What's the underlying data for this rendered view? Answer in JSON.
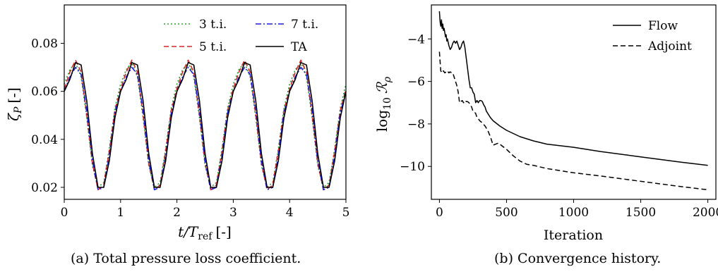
{
  "captions": {
    "a": "(a) Total pressure loss coefficient.",
    "b": "(b) Convergence history."
  },
  "chart_data": [
    {
      "type": "line",
      "xlabel_main": "t/T",
      "xlabel_sub": "ref",
      "xlabel_unit": "[-]",
      "ylabel_main": "ζ",
      "ylabel_sub": "P",
      "ylabel_unit": "[-]",
      "xlim": [
        0,
        5
      ],
      "ylim": [
        0.015,
        0.096
      ],
      "xticks": [
        0,
        1,
        2,
        3,
        4,
        5
      ],
      "xtick_labels": [
        "0",
        "1",
        "2",
        "3",
        "4",
        "5"
      ],
      "yticks": [
        0.02,
        0.04,
        0.06,
        0.08
      ],
      "ytick_labels": [
        "0.02",
        "0.04",
        "0.06",
        "0.08"
      ],
      "grid": false,
      "legend": "top-right",
      "series": [
        {
          "name": "3 t.i.",
          "color": "#2ca02c",
          "dash": "dotted",
          "x": [
            0,
            0.1,
            0.2,
            0.3,
            0.4,
            0.5,
            0.6,
            0.7,
            0.8,
            0.9,
            1.0,
            1.1,
            1.2,
            1.3,
            1.4,
            1.5,
            1.6,
            1.7,
            1.8,
            1.9,
            2.0,
            2.1,
            2.2,
            2.3,
            2.4,
            2.5,
            2.6,
            2.7,
            2.8,
            2.9,
            3.0,
            3.1,
            3.2,
            3.3,
            3.4,
            3.5,
            3.6,
            3.7,
            3.8,
            3.9,
            4.0,
            4.1,
            4.2,
            4.3,
            4.4,
            4.5,
            4.6,
            4.7,
            4.8,
            4.9,
            5.0
          ],
          "y": [
            0.063,
            0.069,
            0.072,
            0.066,
            0.049,
            0.029,
            0.02,
            0.022,
            0.036,
            0.053,
            0.063,
            0.069,
            0.072,
            0.066,
            0.049,
            0.029,
            0.02,
            0.022,
            0.036,
            0.053,
            0.063,
            0.069,
            0.072,
            0.066,
            0.049,
            0.029,
            0.02,
            0.022,
            0.036,
            0.053,
            0.063,
            0.069,
            0.072,
            0.066,
            0.049,
            0.029,
            0.02,
            0.022,
            0.036,
            0.053,
            0.063,
            0.069,
            0.072,
            0.066,
            0.049,
            0.029,
            0.02,
            0.022,
            0.036,
            0.053,
            0.063
          ]
        },
        {
          "name": "5 t.i.",
          "color": "#d62728",
          "dash": "dashed",
          "x": [
            0,
            0.1,
            0.2,
            0.3,
            0.4,
            0.5,
            0.6,
            0.7,
            0.8,
            0.9,
            1.0,
            1.1,
            1.2,
            1.3,
            1.4,
            1.5,
            1.6,
            1.7,
            1.8,
            1.9,
            2.0,
            2.1,
            2.2,
            2.3,
            2.4,
            2.5,
            2.6,
            2.7,
            2.8,
            2.9,
            3.0,
            3.1,
            3.2,
            3.3,
            3.4,
            3.5,
            3.6,
            3.7,
            3.8,
            3.9,
            4.0,
            4.1,
            4.2,
            4.3,
            4.4,
            4.5,
            4.6,
            4.7,
            4.8,
            4.9,
            5.0
          ],
          "y": [
            0.061,
            0.068,
            0.073,
            0.068,
            0.05,
            0.03,
            0.019,
            0.021,
            0.035,
            0.052,
            0.061,
            0.068,
            0.073,
            0.068,
            0.05,
            0.03,
            0.019,
            0.021,
            0.035,
            0.052,
            0.061,
            0.068,
            0.073,
            0.068,
            0.05,
            0.03,
            0.019,
            0.021,
            0.035,
            0.052,
            0.061,
            0.068,
            0.073,
            0.068,
            0.05,
            0.03,
            0.019,
            0.021,
            0.035,
            0.052,
            0.061,
            0.068,
            0.073,
            0.068,
            0.05,
            0.03,
            0.019,
            0.021,
            0.035,
            0.052,
            0.061
          ]
        },
        {
          "name": "7 t.i.",
          "color": "#1f1fdd",
          "dash": "dashdot",
          "x": [
            0,
            0.1,
            0.2,
            0.3,
            0.4,
            0.5,
            0.6,
            0.7,
            0.8,
            0.9,
            1.0,
            1.1,
            1.2,
            1.3,
            1.4,
            1.5,
            1.6,
            1.7,
            1.8,
            1.9,
            2.0,
            2.1,
            2.2,
            2.3,
            2.4,
            2.5,
            2.6,
            2.7,
            2.8,
            2.9,
            3.0,
            3.1,
            3.2,
            3.3,
            3.4,
            3.5,
            3.6,
            3.7,
            3.8,
            3.9,
            4.0,
            4.1,
            4.2,
            4.3,
            4.4,
            4.5,
            4.6,
            4.7,
            4.8,
            4.9,
            5.0
          ],
          "y": [
            0.06,
            0.066,
            0.07,
            0.067,
            0.052,
            0.031,
            0.019,
            0.02,
            0.033,
            0.051,
            0.06,
            0.066,
            0.07,
            0.067,
            0.052,
            0.031,
            0.019,
            0.02,
            0.033,
            0.051,
            0.06,
            0.066,
            0.07,
            0.067,
            0.052,
            0.031,
            0.019,
            0.02,
            0.033,
            0.051,
            0.06,
            0.066,
            0.07,
            0.067,
            0.052,
            0.031,
            0.019,
            0.02,
            0.033,
            0.051,
            0.06,
            0.066,
            0.07,
            0.067,
            0.052,
            0.031,
            0.019,
            0.02,
            0.033,
            0.051,
            0.06
          ]
        },
        {
          "name": "TA",
          "color": "#000000",
          "dash": "solid",
          "x": [
            0,
            0.1,
            0.2,
            0.3,
            0.4,
            0.5,
            0.6,
            0.7,
            0.8,
            0.9,
            1.0,
            1.1,
            1.2,
            1.3,
            1.4,
            1.5,
            1.6,
            1.7,
            1.8,
            1.9,
            2.0,
            2.1,
            2.2,
            2.3,
            2.4,
            2.5,
            2.6,
            2.7,
            2.8,
            2.9,
            3.0,
            3.1,
            3.2,
            3.3,
            3.4,
            3.5,
            3.6,
            3.7,
            3.8,
            3.9,
            4.0,
            4.1,
            4.2,
            4.3,
            4.4,
            4.5,
            4.6,
            4.7,
            4.8,
            4.9,
            5.0
          ],
          "y": [
            0.06,
            0.065,
            0.072,
            0.071,
            0.056,
            0.034,
            0.02,
            0.02,
            0.031,
            0.049,
            0.06,
            0.065,
            0.072,
            0.071,
            0.056,
            0.034,
            0.02,
            0.02,
            0.031,
            0.049,
            0.06,
            0.065,
            0.072,
            0.071,
            0.056,
            0.034,
            0.02,
            0.02,
            0.031,
            0.049,
            0.06,
            0.065,
            0.072,
            0.071,
            0.056,
            0.034,
            0.02,
            0.02,
            0.031,
            0.049,
            0.06,
            0.065,
            0.072,
            0.071,
            0.056,
            0.034,
            0.02,
            0.02,
            0.031,
            0.049,
            0.06
          ]
        }
      ]
    },
    {
      "type": "line",
      "xlabel": "Iteration",
      "ylabel_main": "log",
      "ylabel_sub": "10",
      "ylabel_sym": "ℛ",
      "ylabel_sym_sub": "ρ",
      "xlim": [
        -60,
        2060
      ],
      "ylim": [
        -11.55,
        -2.4
      ],
      "xticks": [
        0,
        500,
        1000,
        1500,
        2000
      ],
      "xtick_labels": [
        "0",
        "500",
        "1000",
        "1500",
        "2000"
      ],
      "yticks": [
        -4,
        -6,
        -8,
        -10
      ],
      "ytick_labels": [
        "−4",
        "−6",
        "−8",
        "−10"
      ],
      "grid": false,
      "legend": "top-right",
      "series": [
        {
          "name": "Flow",
          "color": "#000000",
          "dash": "solid",
          "x": [
            0,
            5,
            10,
            15,
            20,
            25,
            30,
            35,
            40,
            45,
            50,
            55,
            60,
            70,
            80,
            90,
            100,
            110,
            120,
            130,
            140,
            150,
            160,
            170,
            180,
            190,
            200,
            210,
            220,
            230,
            240,
            250,
            260,
            270,
            280,
            290,
            300,
            310,
            320,
            330,
            340,
            350,
            360,
            380,
            400,
            450,
            500,
            600,
            700,
            800,
            1000,
            1200,
            1500,
            1800,
            2000
          ],
          "y": [
            -2.7,
            -3.2,
            -3.4,
            -3.1,
            -3.5,
            -3.3,
            -3.6,
            -3.5,
            -3.7,
            -3.9,
            -3.8,
            -4.1,
            -4.0,
            -4.3,
            -4.5,
            -4.4,
            -4.2,
            -4.1,
            -4.2,
            -4.1,
            -4.3,
            -4.5,
            -4.4,
            -4.2,
            -4.1,
            -4.4,
            -4.9,
            -5.4,
            -5.9,
            -6.3,
            -6.3,
            -6.5,
            -6.6,
            -7.0,
            -6.9,
            -7.0,
            -6.9,
            -6.9,
            -6.95,
            -7.1,
            -7.2,
            -7.4,
            -7.5,
            -7.7,
            -7.85,
            -8.1,
            -8.3,
            -8.6,
            -8.8,
            -8.95,
            -9.1,
            -9.3,
            -9.55,
            -9.8,
            -9.95
          ]
        },
        {
          "name": "Adjoint",
          "color": "#000000",
          "dash": "dashed",
          "x": [
            0,
            10,
            20,
            30,
            40,
            50,
            60,
            70,
            80,
            90,
            100,
            110,
            120,
            130,
            140,
            150,
            160,
            170,
            180,
            190,
            200,
            210,
            220,
            230,
            240,
            250,
            260,
            270,
            280,
            290,
            300,
            320,
            340,
            360,
            380,
            400,
            420,
            440,
            460,
            480,
            500,
            550,
            600,
            650,
            700,
            800,
            900,
            1000,
            1200,
            1500,
            1800,
            2000
          ],
          "y": [
            -4.6,
            -5.5,
            -5.6,
            -5.5,
            -5.6,
            -5.55,
            -5.5,
            -5.6,
            -5.55,
            -5.6,
            -5.6,
            -5.8,
            -6.0,
            -6.2,
            -6.5,
            -7.0,
            -6.95,
            -6.9,
            -7.0,
            -6.9,
            -6.95,
            -6.95,
            -7.0,
            -7.1,
            -7.2,
            -7.4,
            -7.45,
            -7.5,
            -7.7,
            -7.75,
            -7.85,
            -7.95,
            -8.1,
            -8.3,
            -8.6,
            -9.0,
            -8.95,
            -8.9,
            -9.0,
            -9.1,
            -9.2,
            -9.5,
            -9.75,
            -9.9,
            -9.95,
            -10.1,
            -10.2,
            -10.3,
            -10.45,
            -10.7,
            -10.95,
            -11.1
          ]
        }
      ]
    }
  ]
}
